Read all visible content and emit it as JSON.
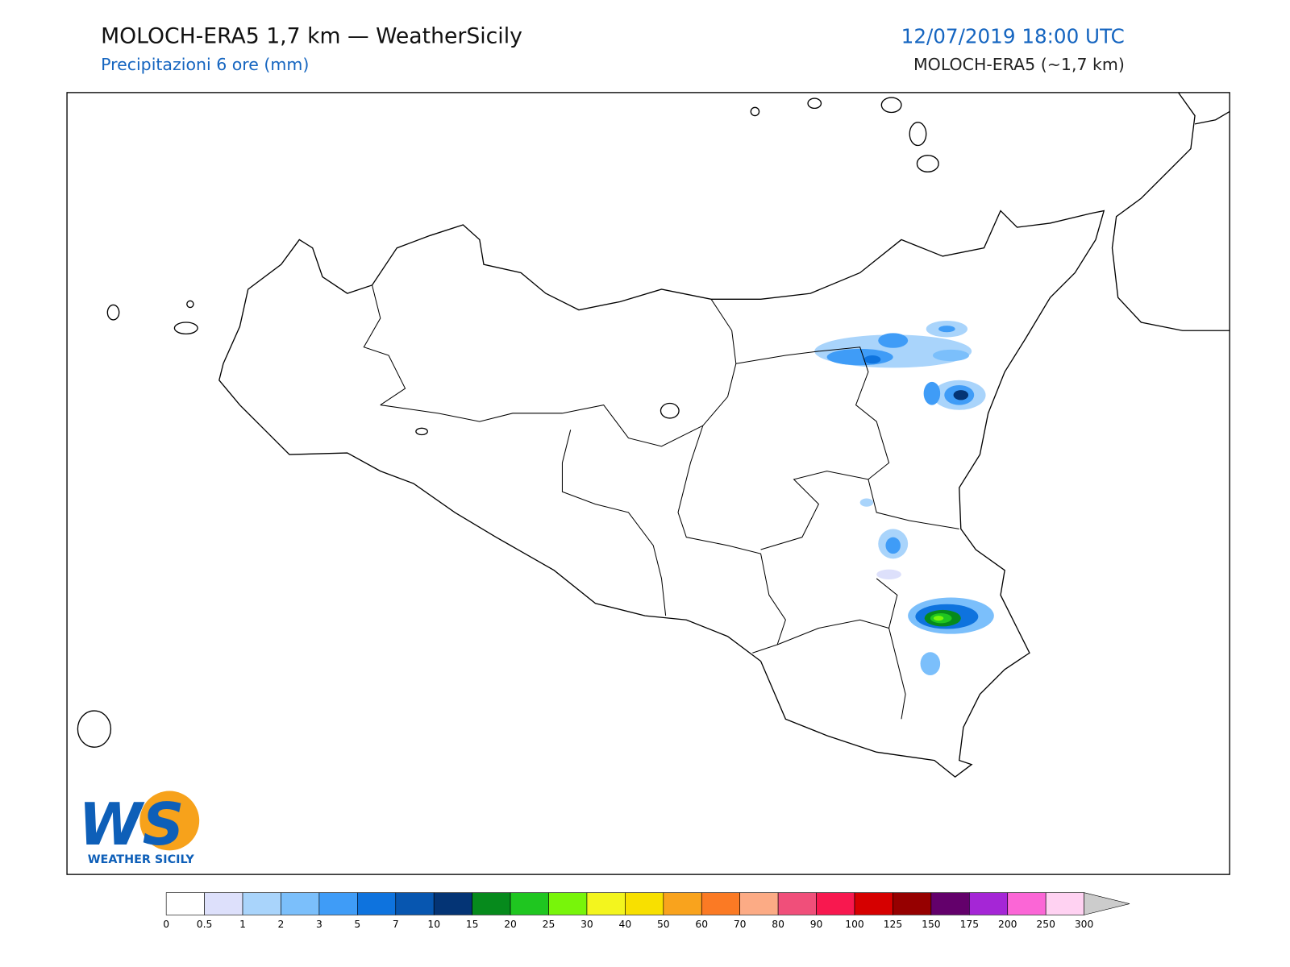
{
  "header": {
    "title": "MOLOCH-ERA5 1,7 km — WeatherSicily",
    "subtitle": "Precipitazioni 6 ore (mm)",
    "datetime": "12/07/2019 18:00 UTC",
    "model": "MOLOCH-ERA5 (~1,7 km)"
  },
  "colorbar": {
    "levels": [
      0,
      0.5,
      1,
      2,
      3,
      5,
      7,
      10,
      15,
      20,
      25,
      30,
      40,
      50,
      60,
      70,
      80,
      90,
      100,
      125,
      150,
      175,
      200,
      250,
      300
    ],
    "colors": [
      "#ffffff",
      "#dde0fb",
      "#a9d4fb",
      "#7bbffb",
      "#3f9cf7",
      "#0e73de",
      "#0756b0",
      "#043475",
      "#068a1c",
      "#1fc620",
      "#78f50a",
      "#f3f51e",
      "#f8e000",
      "#f9a31d",
      "#fb7a24",
      "#fcab85",
      "#f04f7a",
      "#f8184f",
      "#d60000",
      "#960000",
      "#63006b",
      "#a526d6",
      "#fb66d6",
      "#ffd2f2"
    ],
    "over_color": "#cccccc"
  },
  "logo": {
    "letters": "WS",
    "text": "WEATHER SICILY"
  }
}
